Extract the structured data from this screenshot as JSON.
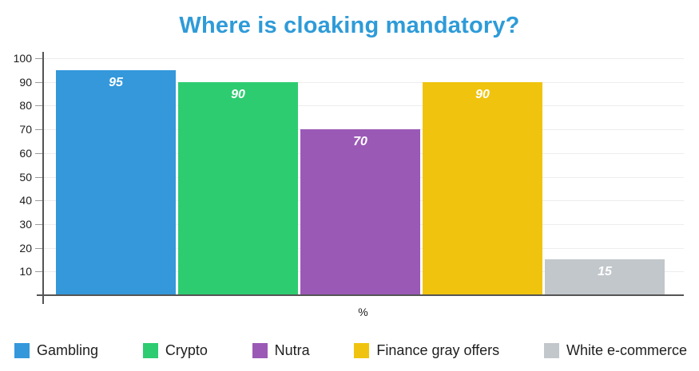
{
  "chart_data": {
    "type": "bar",
    "title": "Where is cloaking mandatory?",
    "xlabel": "%",
    "ylabel": "",
    "ylim": [
      0,
      100
    ],
    "ytick_step": 10,
    "yticks": [
      10,
      20,
      30,
      40,
      50,
      60,
      70,
      80,
      90,
      100
    ],
    "grid": true,
    "legend_position": "bottom",
    "categories": [
      "Gambling",
      "Crypto",
      "Nutra",
      "Finance gray offers",
      "White e-commerce"
    ],
    "values": [
      95,
      90,
      70,
      90,
      15
    ],
    "bar_colors": [
      "#3498db",
      "#2ecc71",
      "#9b59b6",
      "#f0c40e",
      "#c2c7cb"
    ]
  },
  "colors": {
    "title": "#2e9bd8",
    "axis": "#555555",
    "grid": "#ededed",
    "tick": "#9a9a9a",
    "axis_text": "#1c1c1c",
    "bar_value_text": "#ffffff",
    "legend_text": "#1f1f1f"
  }
}
